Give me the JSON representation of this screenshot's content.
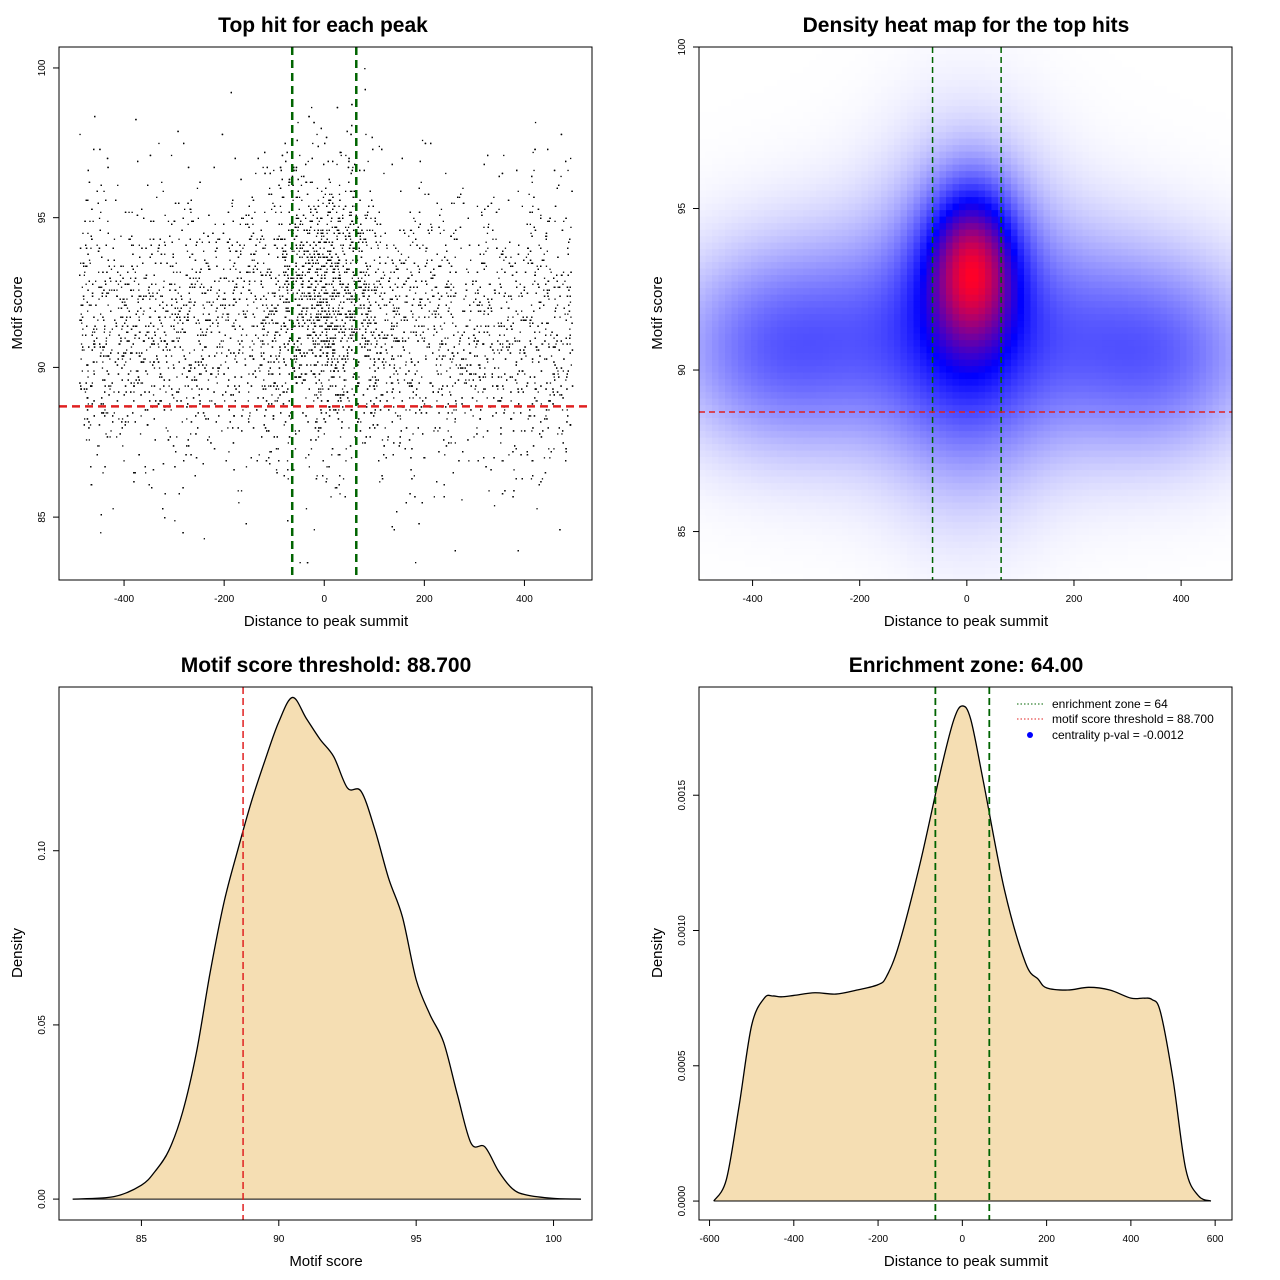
{
  "chart_data": [
    {
      "type": "scatter",
      "title": "Top hit for each peak",
      "xlabel": "Distance to peak summit",
      "ylabel": "Motif score",
      "xlim": [
        -530,
        535
      ],
      "ylim": [
        82.9,
        100.7
      ],
      "xticks": [
        -400,
        -200,
        0,
        200,
        400
      ],
      "yticks": [
        85,
        90,
        95,
        100
      ],
      "xtick_labels": [
        "-400",
        "-200",
        "0",
        "200",
        "400"
      ],
      "ytick_labels": [
        "85",
        "90",
        "95",
        "100"
      ],
      "point_color": "#000000",
      "point_count_approx": 9000,
      "x_range": [
        -490,
        495
      ],
      "score_distribution": {
        "mean": 91.3,
        "sd": 2.4,
        "min": 83.5,
        "max": 100
      },
      "central_enrichment": {
        "center": 0,
        "width": 60
      },
      "vlines": [
        {
          "x": -64,
          "color": "#006400"
        },
        {
          "x": 64,
          "color": "#006400"
        }
      ],
      "hlines": [
        {
          "y": 88.7,
          "color": "#e02020"
        }
      ]
    },
    {
      "type": "heatmap",
      "title": "Density heat map for the top hits",
      "xlabel": "Distance to peak summit",
      "ylabel": "Motif score",
      "xlim": [
        -500,
        495
      ],
      "ylim": [
        83.5,
        100
      ],
      "xticks": [
        -400,
        -200,
        0,
        200,
        400
      ],
      "yticks": [
        85,
        90,
        95,
        100
      ],
      "xtick_labels": [
        "-400",
        "-200",
        "0",
        "200",
        "400"
      ],
      "ytick_labels": [
        "85",
        "90",
        "95",
        "100"
      ],
      "colors": {
        "low": "#ffffff",
        "mid": "#0000ff",
        "high": "#ff0000"
      },
      "hotspot": {
        "x": 10,
        "y": 93.3
      },
      "density_components": [
        {
          "x": 0,
          "y": 91.5,
          "sx": 100,
          "sy": 3.0,
          "w": 1.0
        },
        {
          "x": 10,
          "y": 93.3,
          "sx": 55,
          "sy": 1.6,
          "w": 1.4
        },
        {
          "x": -380,
          "y": 90.7,
          "sx": 120,
          "sy": 2.0,
          "w": 0.55
        },
        {
          "x": 380,
          "y": 90.5,
          "sx": 120,
          "sy": 2.0,
          "w": 0.55
        },
        {
          "x": -200,
          "y": 91.0,
          "sx": 120,
          "sy": 2.3,
          "w": 0.45
        },
        {
          "x": 200,
          "y": 91.0,
          "sx": 120,
          "sy": 2.3,
          "w": 0.45
        }
      ],
      "vlines": [
        {
          "x": -64,
          "color": "#006400"
        },
        {
          "x": 64,
          "color": "#006400"
        }
      ],
      "hlines": [
        {
          "y": 88.7,
          "color": "#e02020"
        }
      ]
    },
    {
      "type": "area",
      "title": "Motif score threshold: 88.700",
      "xlabel": "Motif score",
      "ylabel": "Density",
      "xlim": [
        82.0,
        101.4
      ],
      "ylim": [
        -0.006,
        0.147
      ],
      "xticks": [
        85,
        90,
        95,
        100
      ],
      "yticks": [
        0.0,
        0.05,
        0.1
      ],
      "xtick_labels": [
        "85",
        "90",
        "95",
        "100"
      ],
      "ytick_labels": [
        "0.00",
        "0.05",
        "0.10"
      ],
      "fill_color": "#f5deb3",
      "x": [
        82.5,
        84,
        85,
        85.5,
        86,
        86.5,
        87,
        87.5,
        88,
        88.5,
        89,
        89.5,
        90,
        90.5,
        91,
        91.5,
        92,
        92.5,
        93,
        93.5,
        94,
        94.5,
        95,
        95.5,
        96,
        96.5,
        97,
        97.5,
        98,
        98.5,
        99,
        100,
        101
      ],
      "values": [
        0.0,
        0.0007,
        0.004,
        0.008,
        0.014,
        0.025,
        0.042,
        0.065,
        0.085,
        0.1,
        0.114,
        0.126,
        0.137,
        0.144,
        0.138,
        0.132,
        0.127,
        0.118,
        0.117,
        0.106,
        0.092,
        0.081,
        0.063,
        0.053,
        0.045,
        0.03,
        0.016,
        0.015,
        0.008,
        0.003,
        0.0012,
        0.0002,
        0.0
      ],
      "vlines": [
        {
          "x": 88.7,
          "color": "#e02020"
        }
      ]
    },
    {
      "type": "area",
      "title": "Enrichment zone: 64.00",
      "xlabel": "Distance to peak summit",
      "ylabel": "Density",
      "xlim": [
        -625,
        640
      ],
      "ylim": [
        -7e-05,
        0.0019
      ],
      "xticks": [
        -600,
        -400,
        -200,
        0,
        200,
        400,
        600
      ],
      "yticks": [
        0.0,
        0.0005,
        0.001,
        0.0015
      ],
      "xtick_labels": [
        "-600",
        "-400",
        "-200",
        "0",
        "200",
        "400",
        "600"
      ],
      "ytick_labels": [
        "0.0000",
        "0.0005",
        "0.0010",
        "0.0015"
      ],
      "fill_color": "#f5deb3",
      "x": [
        -590,
        -560,
        -530,
        -500,
        -470,
        -450,
        -430,
        -400,
        -350,
        -300,
        -250,
        -200,
        -180,
        -150,
        -100,
        -50,
        -20,
        0,
        20,
        50,
        100,
        150,
        180,
        200,
        250,
        300,
        350,
        400,
        430,
        450,
        470,
        500,
        530,
        560,
        590
      ],
      "values": [
        0.0,
        8e-05,
        0.00035,
        0.00065,
        0.00075,
        0.000758,
        0.000755,
        0.00076,
        0.00077,
        0.000765,
        0.00078,
        0.0008,
        0.00083,
        0.00095,
        0.00125,
        0.0016,
        0.00178,
        0.00183,
        0.00178,
        0.00155,
        0.00115,
        0.00088,
        0.00082,
        0.000788,
        0.00078,
        0.00079,
        0.00078,
        0.00075,
        0.00075,
        0.000745,
        0.0007,
        0.00045,
        0.00012,
        2e-05,
        0.0
      ],
      "vlines": [
        {
          "x": -64,
          "color": "#006400"
        },
        {
          "x": 64,
          "color": "#006400"
        }
      ],
      "legend": {
        "placement": "top-right",
        "entries": [
          {
            "label": "enrichment zone = 64",
            "color": "#006400",
            "style": "dotted-line"
          },
          {
            "label": "motif score threshold = 88.700",
            "color": "#e02020",
            "style": "dotted-line"
          },
          {
            "label": "centrality p-val = -0.0012",
            "color": "#0000ff",
            "style": "point"
          }
        ]
      }
    }
  ]
}
